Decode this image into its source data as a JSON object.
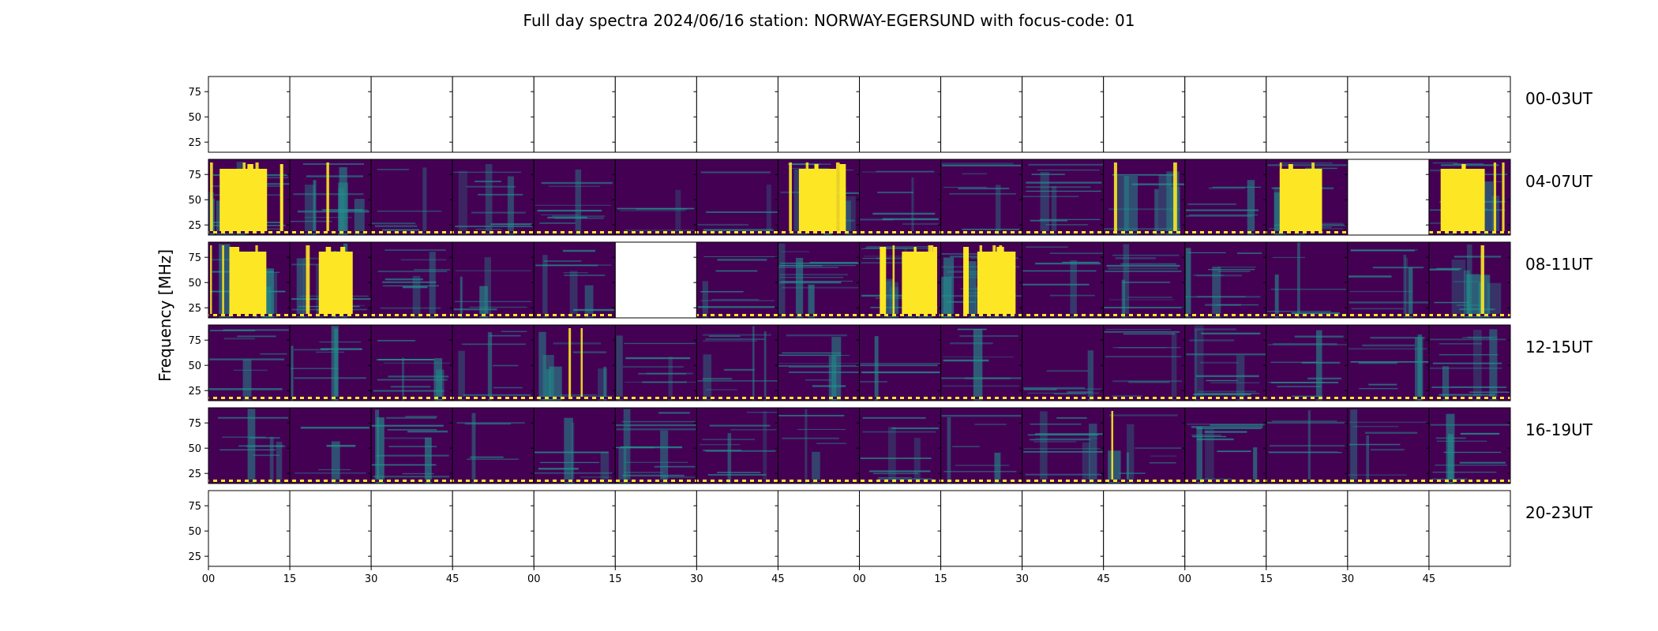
{
  "title": "Full day spectra 2024/06/16 station: NORWAY-EGERSUND with focus-code: 01",
  "chart_data": {
    "type": "heatmap",
    "title": "Full day spectra 2024/06/16 station: NORWAY-EGERSUND with focus-code: 01",
    "ylabel": "Frequency [MHz]",
    "xlabel": "",
    "y_ticks": [
      "25",
      "50",
      "75"
    ],
    "x_ticks": [
      "00",
      "15",
      "30",
      "45",
      "00",
      "15",
      "30",
      "45",
      "00",
      "15",
      "30",
      "45",
      "00",
      "15",
      "30",
      "45"
    ],
    "ylim": [
      15,
      90
    ],
    "colormap": "viridis",
    "colors": {
      "low": "#440154",
      "mid": "#21918c",
      "high": "#fde725"
    },
    "rows": [
      {
        "label": "00-03UT",
        "panels": [
          0,
          0,
          0,
          0,
          0,
          0,
          0,
          0,
          0,
          0,
          0,
          0,
          0,
          0,
          0,
          0
        ]
      },
      {
        "label": "04-07UT",
        "panels": [
          3,
          2,
          1,
          1,
          1,
          1,
          1,
          3,
          1,
          1,
          1,
          2,
          1,
          3,
          0,
          3
        ]
      },
      {
        "label": "08-11UT",
        "panels": [
          3,
          3,
          1,
          1,
          1,
          0,
          1,
          1,
          3,
          3,
          1,
          1,
          1,
          1,
          1,
          2
        ]
      },
      {
        "label": "12-15UT",
        "panels": [
          1,
          1,
          1,
          1,
          2,
          1,
          1,
          1,
          1,
          1,
          1,
          1,
          1,
          1,
          1,
          1
        ]
      },
      {
        "label": "16-19UT",
        "panels": [
          1,
          1,
          1,
          1,
          1,
          1,
          1,
          1,
          1,
          1,
          1,
          2,
          1,
          1,
          1,
          1
        ]
      },
      {
        "label": "20-23UT",
        "panels": [
          0,
          0,
          0,
          0,
          0,
          0,
          0,
          0,
          0,
          0,
          0,
          0,
          0,
          0,
          0,
          0
        ]
      }
    ]
  }
}
